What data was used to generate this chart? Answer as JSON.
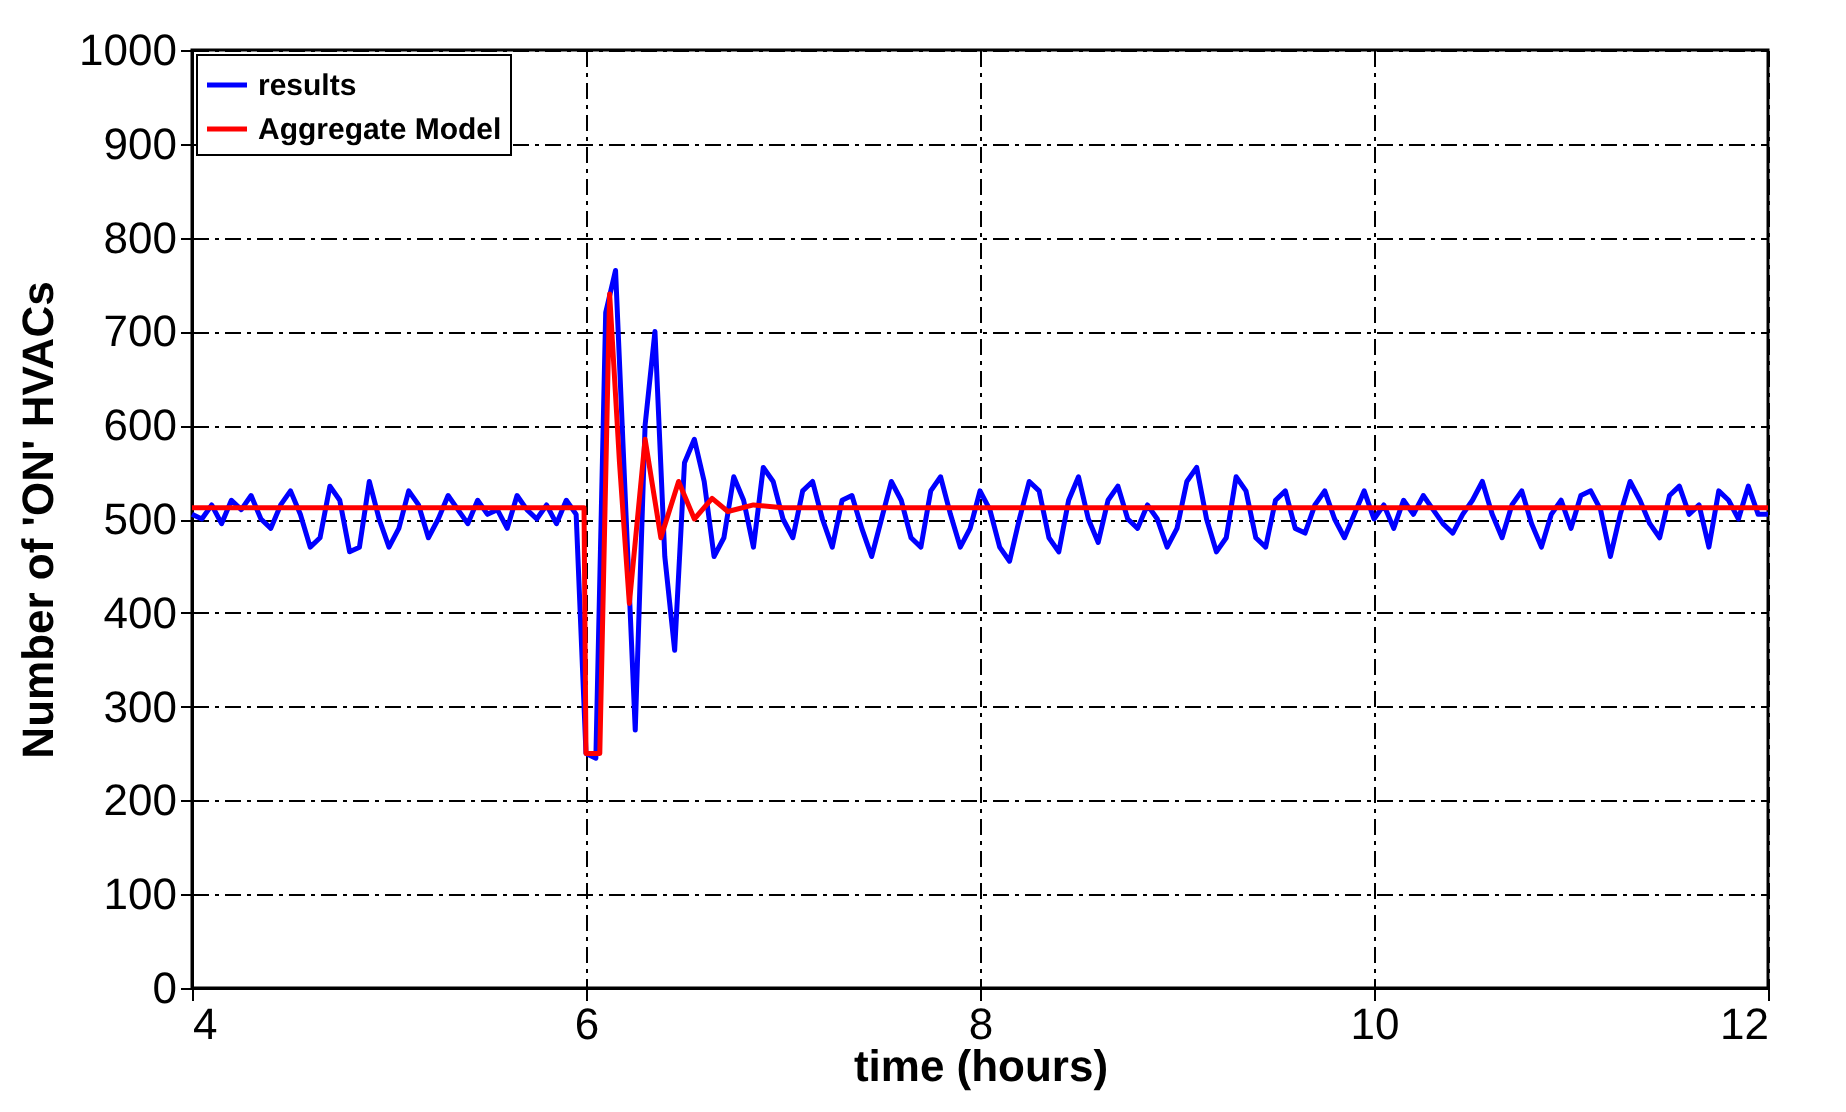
{
  "chart_data": {
    "type": "line",
    "xlabel": "time (hours)",
    "ylabel": "Number of 'ON' HVACs",
    "xlim": [
      4,
      12
    ],
    "ylim": [
      0,
      1000
    ],
    "xticks": [
      4,
      6,
      8,
      10,
      12
    ],
    "yticks": [
      0,
      100,
      200,
      300,
      400,
      500,
      600,
      700,
      800,
      900,
      1000
    ],
    "grid": true,
    "legend": "top left",
    "series": [
      {
        "name": "results",
        "color": "#0000ff",
        "x": [
          4.0,
          4.05,
          4.1,
          4.15,
          4.2,
          4.25,
          4.3,
          4.35,
          4.4,
          4.45,
          4.5,
          4.55,
          4.6,
          4.65,
          4.7,
          4.75,
          4.8,
          4.85,
          4.9,
          4.95,
          5.0,
          5.05,
          5.1,
          5.15,
          5.2,
          5.25,
          5.3,
          5.35,
          5.4,
          5.45,
          5.5,
          5.55,
          5.6,
          5.65,
          5.7,
          5.75,
          5.8,
          5.85,
          5.9,
          5.95,
          6.0,
          6.05,
          6.1,
          6.15,
          6.2,
          6.25,
          6.3,
          6.35,
          6.4,
          6.45,
          6.5,
          6.55,
          6.6,
          6.65,
          6.7,
          6.75,
          6.8,
          6.85,
          6.9,
          6.95,
          7.0,
          7.05,
          7.1,
          7.15,
          7.2,
          7.25,
          7.3,
          7.35,
          7.4,
          7.45,
          7.5,
          7.55,
          7.6,
          7.65,
          7.7,
          7.75,
          7.8,
          7.85,
          7.9,
          7.95,
          8.0,
          8.05,
          8.1,
          8.15,
          8.2,
          8.25,
          8.3,
          8.35,
          8.4,
          8.45,
          8.5,
          8.55,
          8.6,
          8.65,
          8.7,
          8.75,
          8.8,
          8.85,
          8.9,
          8.95,
          9.0,
          9.05,
          9.1,
          9.15,
          9.2,
          9.25,
          9.3,
          9.35,
          9.4,
          9.45,
          9.5,
          9.55,
          9.6,
          9.65,
          9.7,
          9.75,
          9.8,
          9.85,
          9.9,
          9.95,
          10.0,
          10.05,
          10.1,
          10.15,
          10.2,
          10.25,
          10.3,
          10.35,
          10.4,
          10.45,
          10.5,
          10.55,
          10.6,
          10.65,
          10.7,
          10.75,
          10.8,
          10.85,
          10.9,
          10.95,
          11.0,
          11.05,
          11.1,
          11.15,
          11.2,
          11.25,
          11.3,
          11.35,
          11.4,
          11.45,
          11.5,
          11.55,
          11.6,
          11.65,
          11.7,
          11.75,
          11.8,
          11.85,
          11.9,
          11.95,
          12.0
        ],
        "values": [
          505,
          500,
          515,
          495,
          520,
          510,
          525,
          500,
          490,
          515,
          530,
          505,
          470,
          480,
          535,
          520,
          465,
          470,
          540,
          500,
          470,
          490,
          530,
          515,
          480,
          500,
          525,
          510,
          495,
          520,
          505,
          510,
          490,
          525,
          510,
          500,
          515,
          495,
          520,
          505,
          250,
          245,
          720,
          765,
          520,
          275,
          600,
          700,
          460,
          360,
          560,
          585,
          540,
          460,
          480,
          545,
          520,
          470,
          555,
          540,
          500,
          480,
          530,
          540,
          500,
          470,
          520,
          525,
          490,
          460,
          500,
          540,
          520,
          480,
          470,
          530,
          545,
          505,
          470,
          490,
          530,
          510,
          470,
          455,
          500,
          540,
          530,
          480,
          465,
          520,
          545,
          500,
          475,
          520,
          535,
          500,
          490,
          515,
          500,
          470,
          490,
          540,
          555,
          500,
          465,
          480,
          545,
          530,
          480,
          470,
          520,
          530,
          490,
          485,
          515,
          530,
          500,
          480,
          505,
          530,
          500,
          515,
          490,
          520,
          505,
          525,
          510,
          495,
          485,
          505,
          520,
          540,
          505,
          480,
          515,
          530,
          495,
          470,
          505,
          520,
          490,
          525,
          530,
          510,
          460,
          505,
          540,
          520,
          495,
          480,
          525,
          535,
          505,
          515,
          470,
          530,
          520,
          500,
          535,
          505,
          505
        ]
      },
      {
        "name": "Aggregate Model",
        "color": "#ff0000",
        "x": [
          4.0,
          5.99,
          6.0,
          6.07,
          6.12,
          6.17,
          6.22,
          6.3,
          6.38,
          6.47,
          6.55,
          6.64,
          6.72,
          6.85,
          7.0,
          12.0
        ],
        "values": [
          512,
          512,
          250,
          250,
          740,
          560,
          410,
          585,
          480,
          540,
          500,
          522,
          508,
          515,
          512,
          512
        ]
      }
    ]
  }
}
